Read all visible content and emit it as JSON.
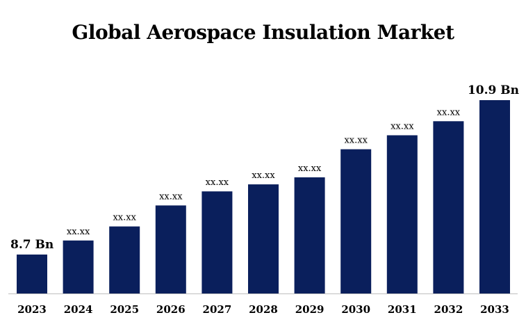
{
  "chart_data": {
    "type": "bar",
    "title": "Global Aerospace Insulation Market",
    "xlabel": "",
    "ylabel": "",
    "categories": [
      "2023",
      "2024",
      "2025",
      "2026",
      "2027",
      "2028",
      "2029",
      "2030",
      "2031",
      "2032",
      "2033"
    ],
    "values": [
      8.7,
      8.9,
      9.1,
      9.4,
      9.6,
      9.7,
      9.8,
      10.2,
      10.4,
      10.6,
      10.9
    ],
    "data_labels": [
      "8.7 Bn",
      "xx.xx",
      "xx.xx",
      "xx.xx",
      "xx.xx",
      "xx.xx",
      "xx.xx",
      "xx.xx",
      "xx.xx",
      "xx.xx",
      "10.9 Bn"
    ],
    "bar_color": "#0a1f5c",
    "grid": false,
    "legend": "none"
  }
}
